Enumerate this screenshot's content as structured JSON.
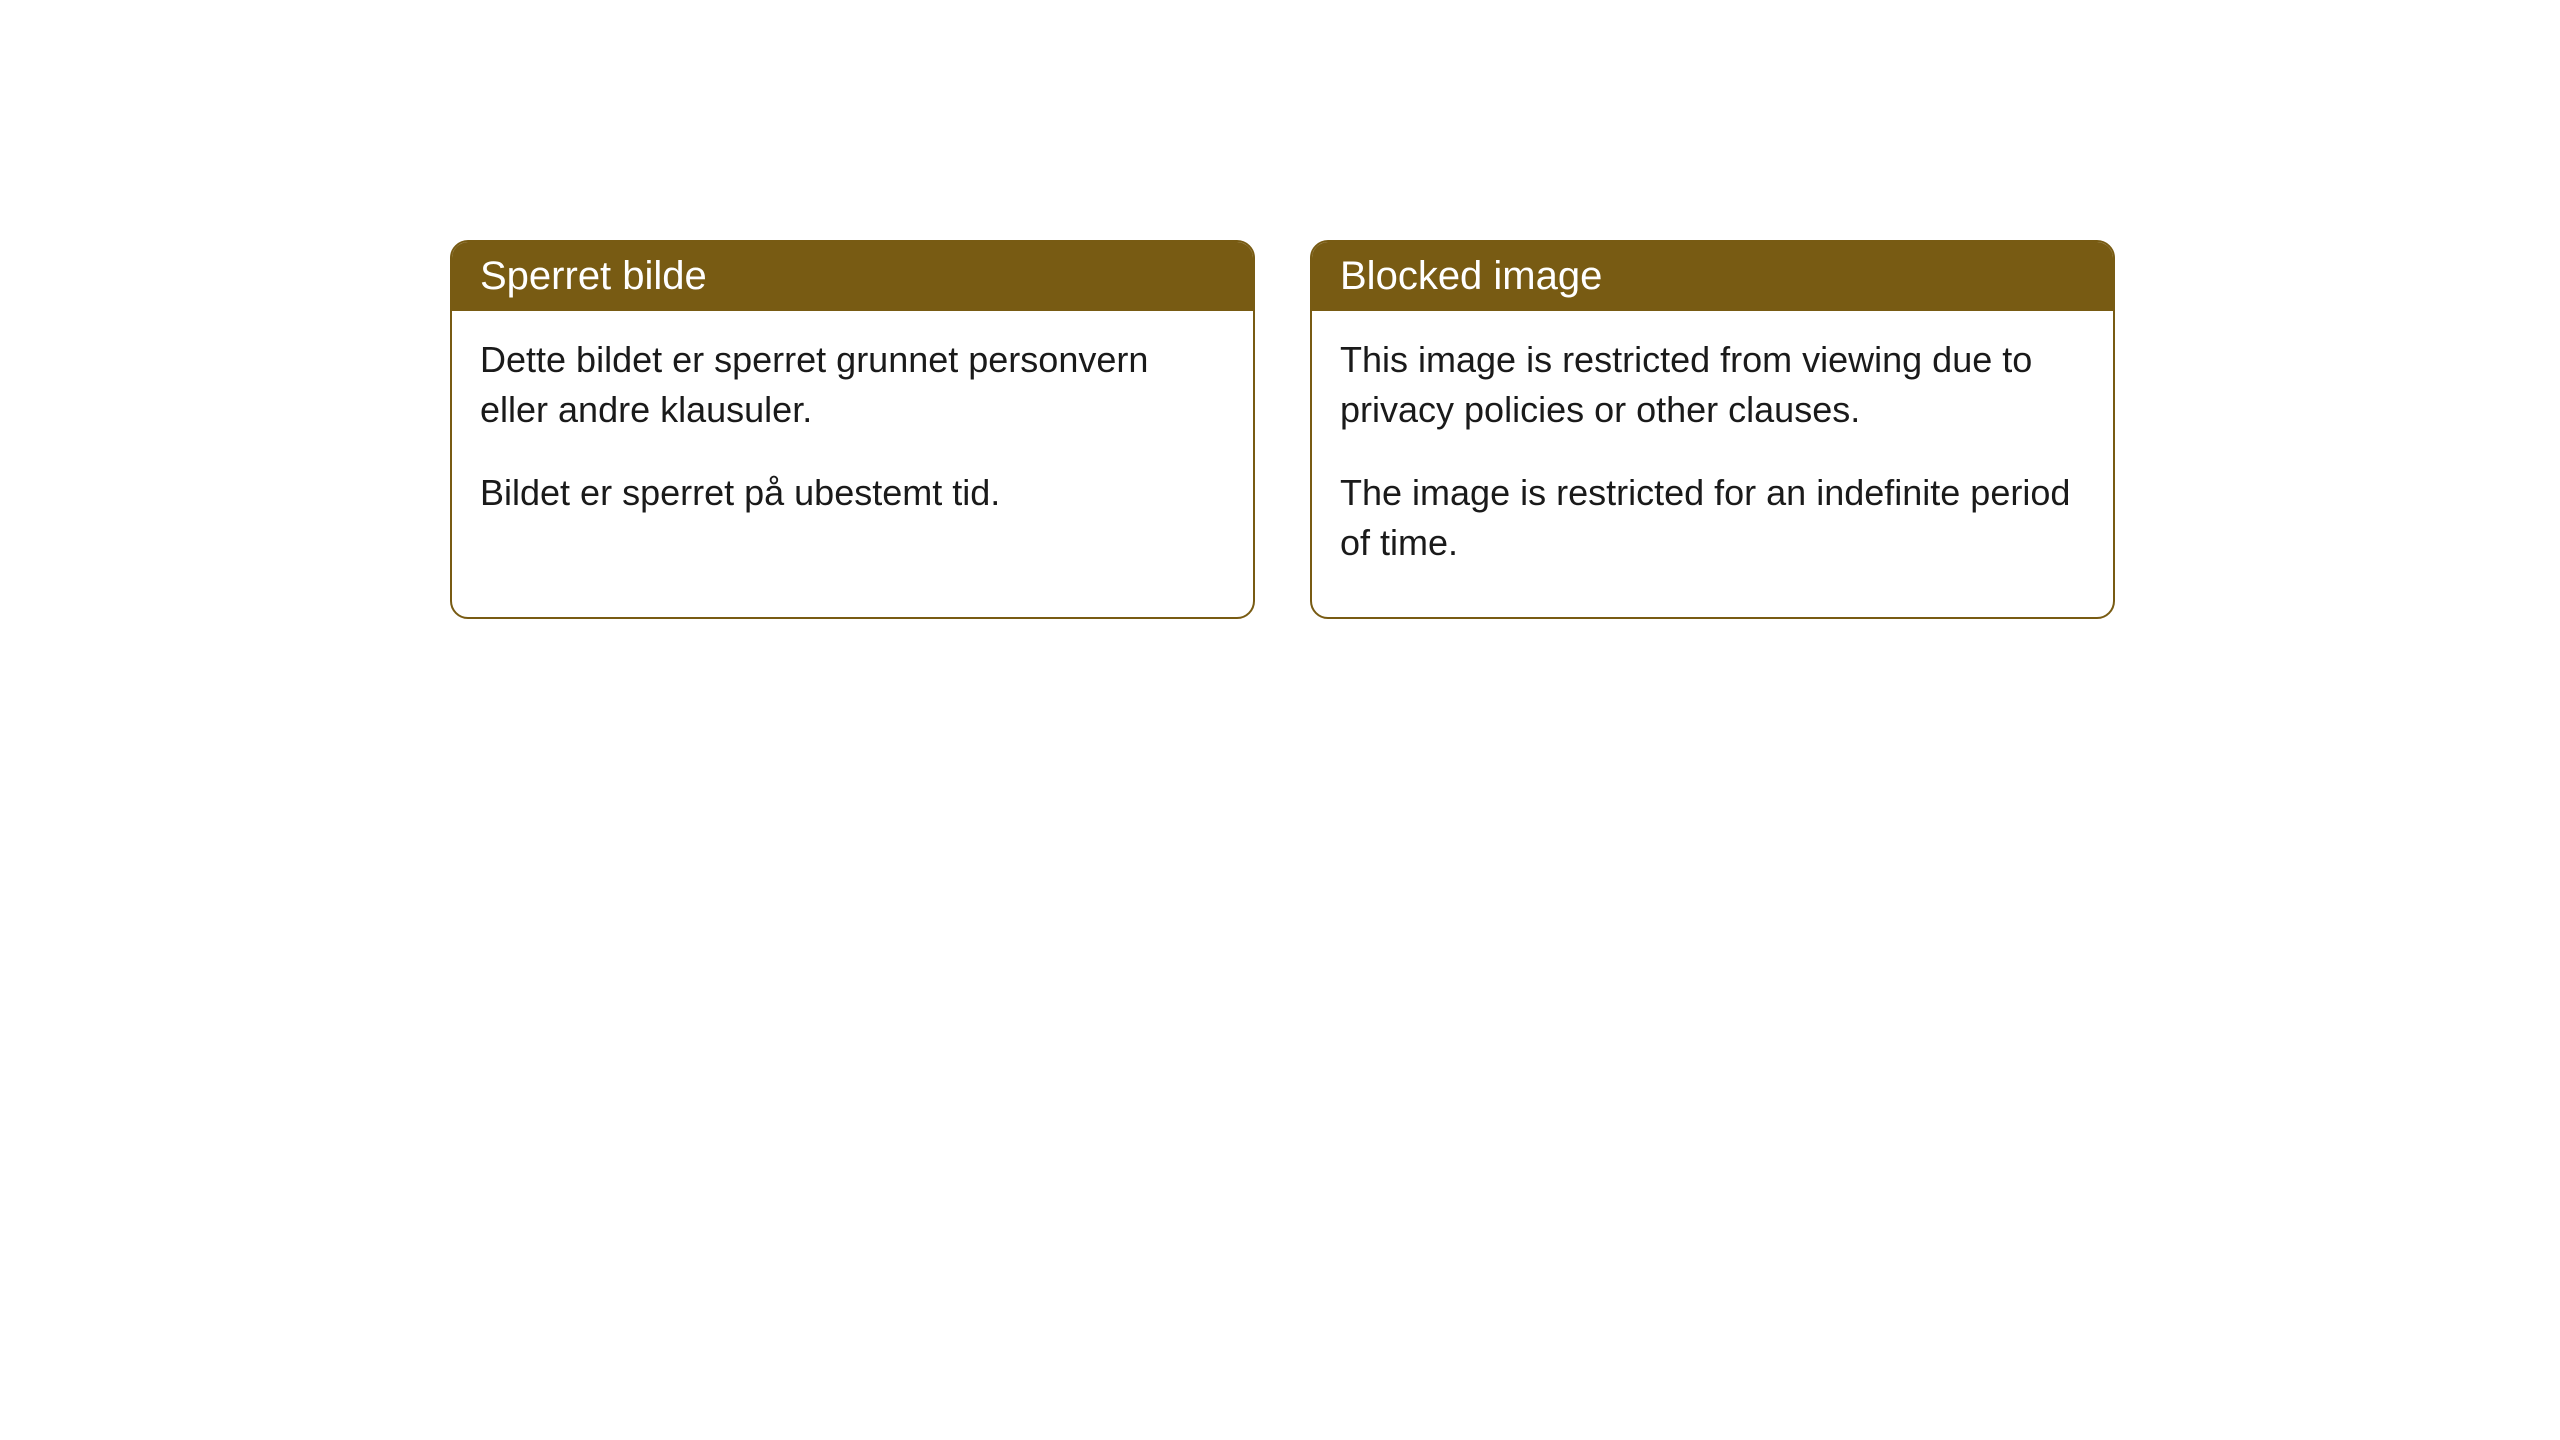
{
  "cards": [
    {
      "title": "Sperret bilde",
      "paragraph1": "Dette bildet er sperret grunnet personvern eller andre klausuler.",
      "paragraph2": "Bildet er sperret på ubestemt tid."
    },
    {
      "title": "Blocked image",
      "paragraph1": "This image is restricted from viewing due to privacy policies or other clauses.",
      "paragraph2": "The image is restricted for an indefinite period of time."
    }
  ],
  "style": {
    "header_bg_color": "#785b13",
    "header_text_color": "#ffffff",
    "border_color": "#785b13",
    "body_bg_color": "#ffffff",
    "body_text_color": "#1a1a1a",
    "border_radius": 18,
    "title_fontsize": 40,
    "body_fontsize": 36
  }
}
